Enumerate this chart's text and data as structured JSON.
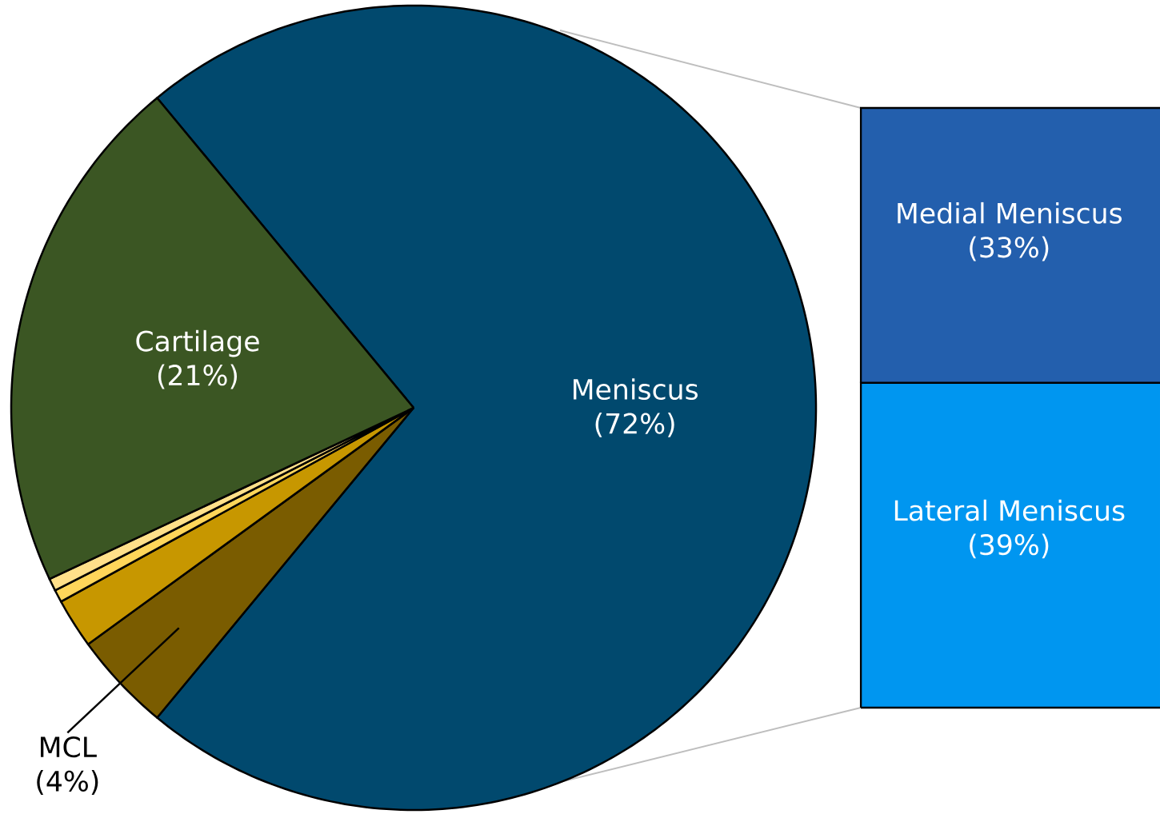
{
  "chart_data": [
    {
      "type": "pie",
      "categories": [
        "Meniscus",
        "MCL",
        null,
        null,
        null,
        "Cartilage"
      ],
      "values": [
        72,
        4,
        2,
        0.5,
        0.5,
        21
      ],
      "colors": [
        "#01496e",
        "#7a5c00",
        "#c79700",
        "#ffd65a",
        "#ffe08a",
        "#3b5623"
      ],
      "value_labels": [
        "(72%)",
        "(4%)",
        null,
        null,
        null,
        "(21%)"
      ]
    },
    {
      "type": "bar",
      "stacked": true,
      "categories": [
        null
      ],
      "series": [
        {
          "name": "Lateral Meniscus",
          "color": "#0096f0",
          "values": [
            39
          ],
          "value_labels": [
            "(39%)"
          ]
        },
        {
          "name": "Medial Meniscus",
          "color": "#235fad",
          "values": [
            33
          ],
          "value_labels": [
            "(33%)"
          ]
        }
      ]
    }
  ]
}
